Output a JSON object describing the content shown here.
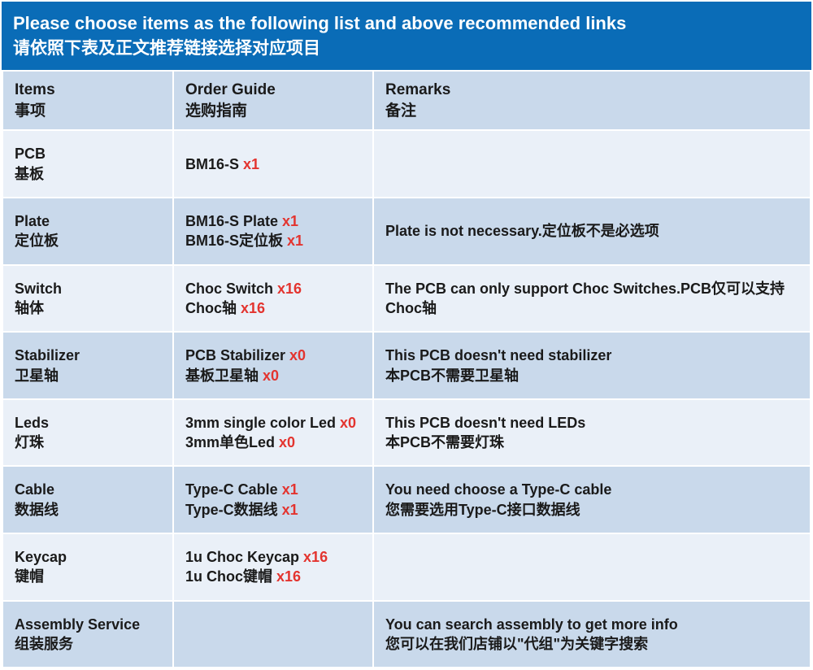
{
  "header": {
    "line1": "Please choose items as the following list and above recommended links",
    "line2": "请依照下表及正文推荐链接选择对应项目"
  },
  "columns": {
    "items": {
      "en": "Items",
      "zh": "事项"
    },
    "guide": {
      "en": "Order Guide",
      "zh": "选购指南"
    },
    "remarks": {
      "en": "Remarks",
      "zh": "备注"
    }
  },
  "colors": {
    "header_bg": "#0a6cb7",
    "header_text": "#ffffff",
    "row_odd_bg": "#eaf0f8",
    "row_even_bg": "#c9d9eb",
    "qty_color": "#e3342f",
    "text_color": "#1a1a1a",
    "border_color": "#ffffff"
  },
  "rows": [
    {
      "item_en": "PCB",
      "item_zh": "基板",
      "guide": [
        {
          "text": "BM16-S ",
          "qty": "x1"
        }
      ],
      "remarks": []
    },
    {
      "item_en": "Plate",
      "item_zh": "定位板",
      "guide": [
        {
          "text": "BM16-S Plate ",
          "qty": "x1"
        },
        {
          "text": "BM16-S定位板 ",
          "qty": "x1"
        }
      ],
      "remarks": [
        "Plate is not necessary.定位板不是必选项"
      ]
    },
    {
      "item_en": "Switch",
      "item_zh": "轴体",
      "guide": [
        {
          "text": "Choc Switch ",
          "qty": "x16"
        },
        {
          "text": "Choc轴 ",
          "qty": "x16"
        }
      ],
      "remarks": [
        "The PCB can only support Choc Switches.PCB仅可以支持Choc轴"
      ]
    },
    {
      "item_en": "Stabilizer",
      "item_zh": "卫星轴",
      "guide": [
        {
          "text": "PCB Stabilizer ",
          "qty": "x0"
        },
        {
          "text": "基板卫星轴 ",
          "qty": "x0"
        }
      ],
      "remarks": [
        "This PCB doesn't need stabilizer",
        "本PCB不需要卫星轴"
      ]
    },
    {
      "item_en": "Leds",
      "item_zh": "灯珠",
      "guide": [
        {
          "text": "3mm single color Led ",
          "qty": "x0"
        },
        {
          "text": "3mm单色Led ",
          "qty": "x0"
        }
      ],
      "remarks": [
        "This PCB doesn't need LEDs",
        "本PCB不需要灯珠"
      ]
    },
    {
      "item_en": "Cable",
      "item_zh": "数据线",
      "guide": [
        {
          "text": "Type-C Cable ",
          "qty": "x1"
        },
        {
          "text": "Type-C数据线 ",
          "qty": "x1"
        }
      ],
      "remarks": [
        "You need choose a Type-C cable",
        "您需要选用Type-C接口数据线"
      ]
    },
    {
      "item_en": "Keycap",
      "item_zh": "键帽",
      "guide": [
        {
          "text": "1u Choc Keycap ",
          "qty": "x16"
        },
        {
          "text": "1u Choc键帽 ",
          "qty": "x16"
        }
      ],
      "remarks": []
    },
    {
      "item_en": "Assembly Service",
      "item_zh": "组装服务",
      "guide": [],
      "remarks": [
        "You can search assembly to get more info",
        "您可以在我们店铺以\"代组\"为关键字搜索"
      ]
    }
  ]
}
